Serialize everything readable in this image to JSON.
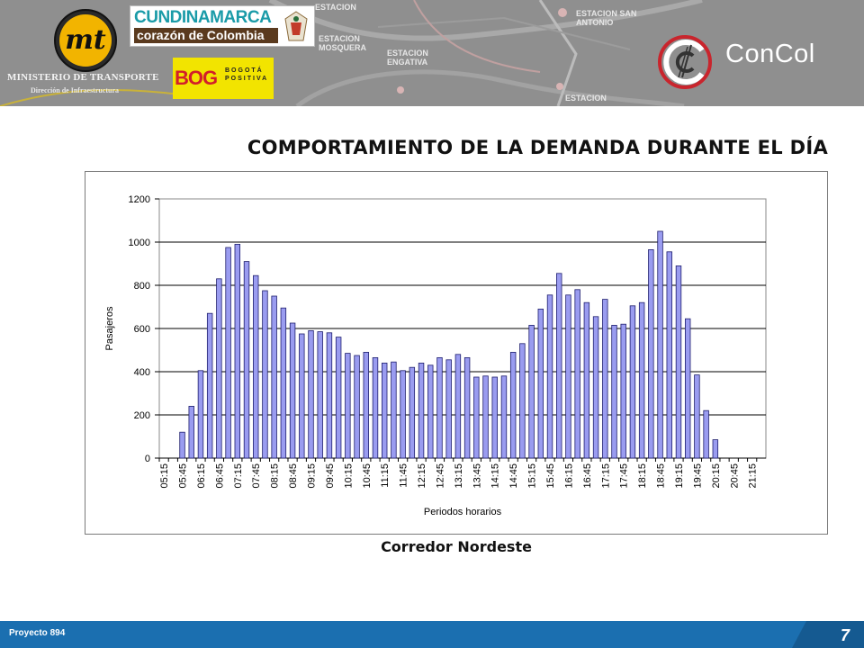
{
  "header": {
    "ministry": {
      "logo_text": "mt",
      "title": "MINISTERIO DE TRANSPORTE",
      "subtitle": "Dirección de Infraestructura"
    },
    "cundinamarca": {
      "name": "CUNDINAMARCA",
      "tagline": "corazón de Colombia"
    },
    "bogota": {
      "mark": "BOG",
      "text": "BOGOTÁ POSITIVA"
    },
    "stations": [
      {
        "label": "ESTACION"
      },
      {
        "label": "ESTACION SAN ANTONIO"
      },
      {
        "label": "ESTACION MOSQUERA"
      },
      {
        "label": "ESTACION ENGATIVA"
      },
      {
        "label": "ESTACION"
      }
    ],
    "concol": {
      "name": "ConCol"
    }
  },
  "slide": {
    "title": "COMPORTAMIENTO DE LA DEMANDA DURANTE EL DÍA",
    "caption": "Corredor Nordeste"
  },
  "footer": {
    "project": "Proyecto 894",
    "page": "7"
  },
  "colors": {
    "bar_fill": "#9a9cf0",
    "bar_stroke": "#1f1f6e",
    "footer_blue": "#1b6fb0"
  },
  "chart_data": {
    "type": "bar",
    "title": "",
    "xlabel": "Periodos horarios",
    "ylabel": "Pasajeros",
    "ylim": [
      0,
      1200
    ],
    "yticks": [
      0,
      200,
      400,
      600,
      800,
      1000,
      1200
    ],
    "grid": true,
    "legend": "none",
    "categories": [
      "05:15",
      "05:30",
      "05:45",
      "06:00",
      "06:15",
      "06:30",
      "06:45",
      "07:00",
      "07:15",
      "07:30",
      "07:45",
      "08:00",
      "08:15",
      "08:30",
      "08:45",
      "09:00",
      "09:15",
      "09:30",
      "09:45",
      "10:00",
      "10:15",
      "10:30",
      "10:45",
      "11:00",
      "11:15",
      "11:30",
      "11:45",
      "12:00",
      "12:15",
      "12:30",
      "12:45",
      "13:00",
      "13:15",
      "13:30",
      "13:45",
      "14:00",
      "14:15",
      "14:30",
      "14:45",
      "15:00",
      "15:15",
      "15:30",
      "15:45",
      "16:00",
      "16:15",
      "16:30",
      "16:45",
      "17:00",
      "17:15",
      "17:30",
      "17:45",
      "18:00",
      "18:15",
      "18:30",
      "18:45",
      "19:00",
      "19:15",
      "19:30",
      "19:45",
      "20:00",
      "20:15",
      "20:30",
      "20:45",
      "21:00",
      "21:15",
      "21:30"
    ],
    "tick_labels": [
      "05:15",
      "05:45",
      "06:15",
      "06:45",
      "07:15",
      "07:45",
      "08:15",
      "08:45",
      "09:15",
      "09:45",
      "10:15",
      "10:45",
      "11:15",
      "11:45",
      "12:15",
      "12:45",
      "13:15",
      "13:45",
      "14:15",
      "14:45",
      "15:15",
      "15:45",
      "16:15",
      "16:45",
      "17:15",
      "17:45",
      "18:15",
      "18:45",
      "19:15",
      "19:45",
      "20:15",
      "20:45",
      "21:15"
    ],
    "values": [
      0,
      0,
      120,
      240,
      405,
      670,
      830,
      975,
      990,
      910,
      845,
      775,
      750,
      695,
      625,
      575,
      590,
      585,
      580,
      560,
      485,
      475,
      490,
      465,
      440,
      445,
      405,
      420,
      440,
      430,
      465,
      455,
      480,
      465,
      375,
      380,
      375,
      380,
      490,
      530,
      615,
      690,
      755,
      855,
      755,
      780,
      720,
      655,
      735,
      615,
      620,
      705,
      720,
      965,
      1050,
      955,
      890,
      645,
      385,
      220,
      85,
      0,
      0,
      0,
      0,
      0
    ]
  }
}
